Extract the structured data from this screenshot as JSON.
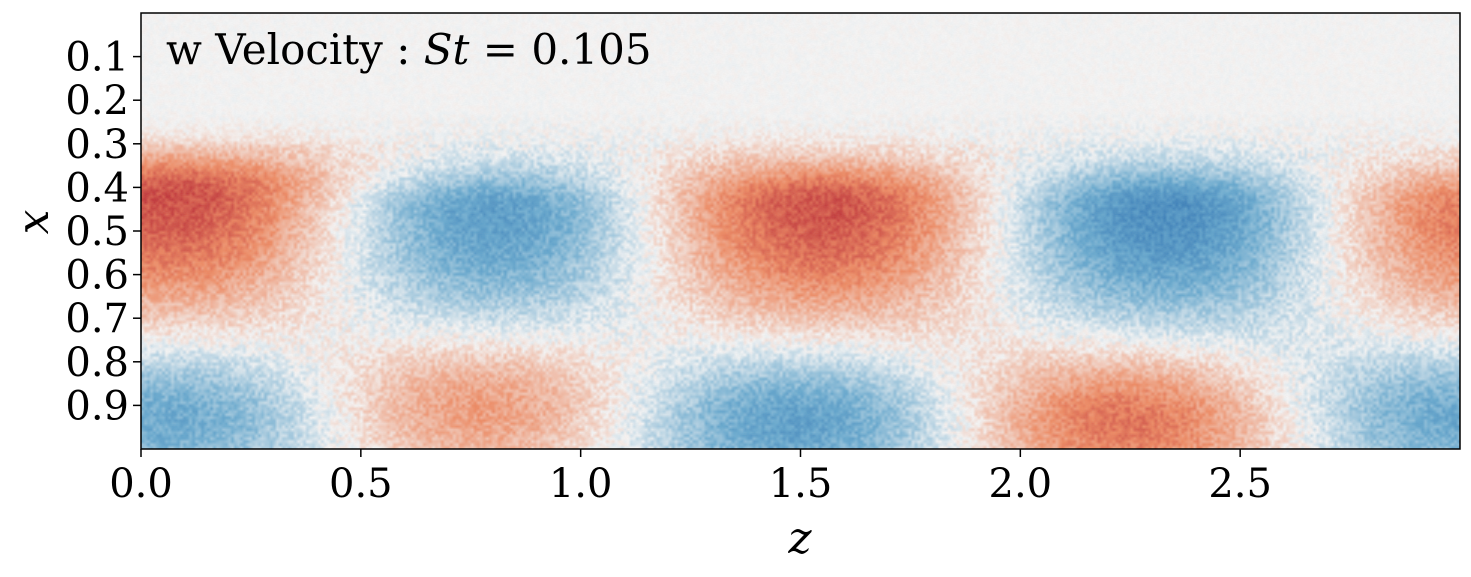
{
  "chart_data": {
    "type": "heatmap",
    "title": {
      "prefix": "w Velocity : ",
      "symbol": "St",
      "equals": " = ",
      "value": "0.105"
    },
    "xlabel": "z",
    "ylabel": "x",
    "xlim": [
      0.0,
      3.0
    ],
    "ylim": [
      1.0,
      0.0
    ],
    "x_ticks": [
      0.0,
      0.5,
      1.0,
      1.5,
      2.0,
      2.5
    ],
    "x_tick_labels": [
      "0.0",
      "0.5",
      "1.0",
      "1.5",
      "2.0",
      "2.5"
    ],
    "y_ticks": [
      0.1,
      0.2,
      0.3,
      0.4,
      0.5,
      0.6,
      0.7,
      0.8,
      0.9
    ],
    "y_tick_labels": [
      "0.1",
      "0.2",
      "0.3",
      "0.4",
      "0.5",
      "0.6",
      "0.7",
      "0.8",
      "0.9"
    ],
    "colormap": "RdBu_r",
    "colors": {
      "positive": "#b2182b",
      "neutral": "#f7f7f7",
      "negative": "#2166ac"
    },
    "structures": [
      {
        "sign": "positive",
        "z": 0.12,
        "x": 0.42,
        "amplitude": 0.85
      },
      {
        "sign": "negative",
        "z": 0.78,
        "x": 0.45,
        "amplitude": 0.75
      },
      {
        "sign": "positive",
        "z": 1.55,
        "x": 0.44,
        "amplitude": 0.85
      },
      {
        "sign": "negative",
        "z": 2.35,
        "x": 0.45,
        "amplitude": 0.85
      },
      {
        "sign": "positive",
        "z": 3.0,
        "x": 0.45,
        "amplitude": 0.7
      },
      {
        "sign": "negative",
        "z": 0.12,
        "x": 0.92,
        "amplitude": 0.6
      },
      {
        "sign": "positive",
        "z": 0.75,
        "x": 0.9,
        "amplitude": 0.6
      },
      {
        "sign": "negative",
        "z": 1.5,
        "x": 0.93,
        "amplitude": 0.7
      },
      {
        "sign": "positive",
        "z": 2.25,
        "x": 0.93,
        "amplitude": 0.75
      },
      {
        "sign": "negative",
        "z": 2.95,
        "x": 0.92,
        "amplitude": 0.6
      }
    ]
  }
}
